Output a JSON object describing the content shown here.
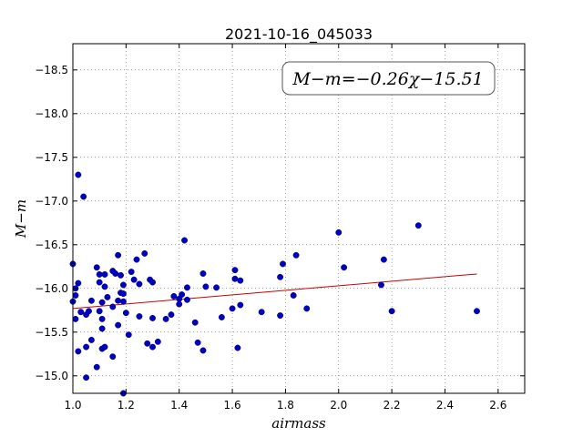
{
  "chart_data": {
    "type": "scatter",
    "title": "2021-10-16_045033",
    "xlabel": "airmass",
    "ylabel": "M−m",
    "xlim": [
      1.0,
      2.7
    ],
    "ylim": [
      -18.8,
      -14.8
    ],
    "y_inverted": true,
    "xticks": [
      "1.0",
      "1.2",
      "1.4",
      "1.6",
      "1.8",
      "2.0",
      "2.2",
      "2.4",
      "2.6"
    ],
    "yticks": [
      "−15.0",
      "−15.5",
      "−16.0",
      "−16.5",
      "−17.0",
      "−17.5",
      "−18.0",
      "−18.5"
    ],
    "grid": true,
    "annotation": "M−m=−0.26χ−15.51",
    "annotation_position": "top-right",
    "marker_color": "#0000bf",
    "fit_color": "#cc0000",
    "fit": {
      "slope": -0.26,
      "intercept": -15.51,
      "x_range": [
        1.0,
        2.52
      ]
    },
    "points": [
      [
        1.0,
        -15.85
      ],
      [
        1.0,
        -16.28
      ],
      [
        1.01,
        -15.65
      ],
      [
        1.01,
        -15.92
      ],
      [
        1.01,
        -16.0
      ],
      [
        1.02,
        -15.28
      ],
      [
        1.02,
        -16.06
      ],
      [
        1.02,
        -17.3
      ],
      [
        1.03,
        -15.73
      ],
      [
        1.04,
        -17.05
      ],
      [
        1.05,
        -14.98
      ],
      [
        1.05,
        -15.33
      ],
      [
        1.05,
        -15.7
      ],
      [
        1.06,
        -15.74
      ],
      [
        1.07,
        -15.41
      ],
      [
        1.07,
        -15.86
      ],
      [
        1.09,
        -15.1
      ],
      [
        1.09,
        -16.24
      ],
      [
        1.1,
        -15.74
      ],
      [
        1.1,
        -16.07
      ],
      [
        1.1,
        -16.16
      ],
      [
        1.11,
        -15.31
      ],
      [
        1.11,
        -15.54
      ],
      [
        1.11,
        -15.65
      ],
      [
        1.11,
        -15.84
      ],
      [
        1.12,
        -15.33
      ],
      [
        1.12,
        -16.02
      ],
      [
        1.12,
        -16.16
      ],
      [
        1.13,
        -15.9
      ],
      [
        1.15,
        -15.22
      ],
      [
        1.15,
        -15.79
      ],
      [
        1.15,
        -16.2
      ],
      [
        1.16,
        -16.17
      ],
      [
        1.17,
        -15.58
      ],
      [
        1.17,
        -15.86
      ],
      [
        1.17,
        -16.38
      ],
      [
        1.18,
        -15.95
      ],
      [
        1.18,
        -16.15
      ],
      [
        1.19,
        -14.8
      ],
      [
        1.19,
        -15.85
      ],
      [
        1.19,
        -15.94
      ],
      [
        1.19,
        -16.04
      ],
      [
        1.2,
        -15.72
      ],
      [
        1.21,
        -15.47
      ],
      [
        1.22,
        -16.19
      ],
      [
        1.23,
        -16.1
      ],
      [
        1.24,
        -16.33
      ],
      [
        1.25,
        -15.68
      ],
      [
        1.25,
        -16.05
      ],
      [
        1.27,
        -16.4
      ],
      [
        1.28,
        -15.37
      ],
      [
        1.29,
        -16.1
      ],
      [
        1.3,
        -15.33
      ],
      [
        1.3,
        -15.66
      ],
      [
        1.3,
        -16.07
      ],
      [
        1.32,
        -15.39
      ],
      [
        1.35,
        -15.65
      ],
      [
        1.37,
        -15.7
      ],
      [
        1.38,
        -15.91
      ],
      [
        1.4,
        -15.82
      ],
      [
        1.4,
        -15.88
      ],
      [
        1.41,
        -15.93
      ],
      [
        1.42,
        -16.55
      ],
      [
        1.43,
        -15.87
      ],
      [
        1.43,
        -16.01
      ],
      [
        1.46,
        -15.61
      ],
      [
        1.47,
        -15.38
      ],
      [
        1.49,
        -15.29
      ],
      [
        1.49,
        -16.17
      ],
      [
        1.5,
        -16.02
      ],
      [
        1.54,
        -16.01
      ],
      [
        1.56,
        -15.67
      ],
      [
        1.6,
        -15.77
      ],
      [
        1.61,
        -16.11
      ],
      [
        1.61,
        -16.21
      ],
      [
        1.62,
        -15.32
      ],
      [
        1.63,
        -15.81
      ],
      [
        1.63,
        -16.09
      ],
      [
        1.71,
        -15.73
      ],
      [
        1.78,
        -15.69
      ],
      [
        1.78,
        -16.13
      ],
      [
        1.79,
        -16.28
      ],
      [
        1.83,
        -15.92
      ],
      [
        1.84,
        -16.38
      ],
      [
        1.88,
        -15.77
      ],
      [
        2.0,
        -16.64
      ],
      [
        2.02,
        -16.24
      ],
      [
        2.16,
        -16.04
      ],
      [
        2.17,
        -16.33
      ],
      [
        2.2,
        -15.74
      ],
      [
        2.3,
        -16.72
      ],
      [
        2.52,
        -15.74
      ]
    ]
  }
}
